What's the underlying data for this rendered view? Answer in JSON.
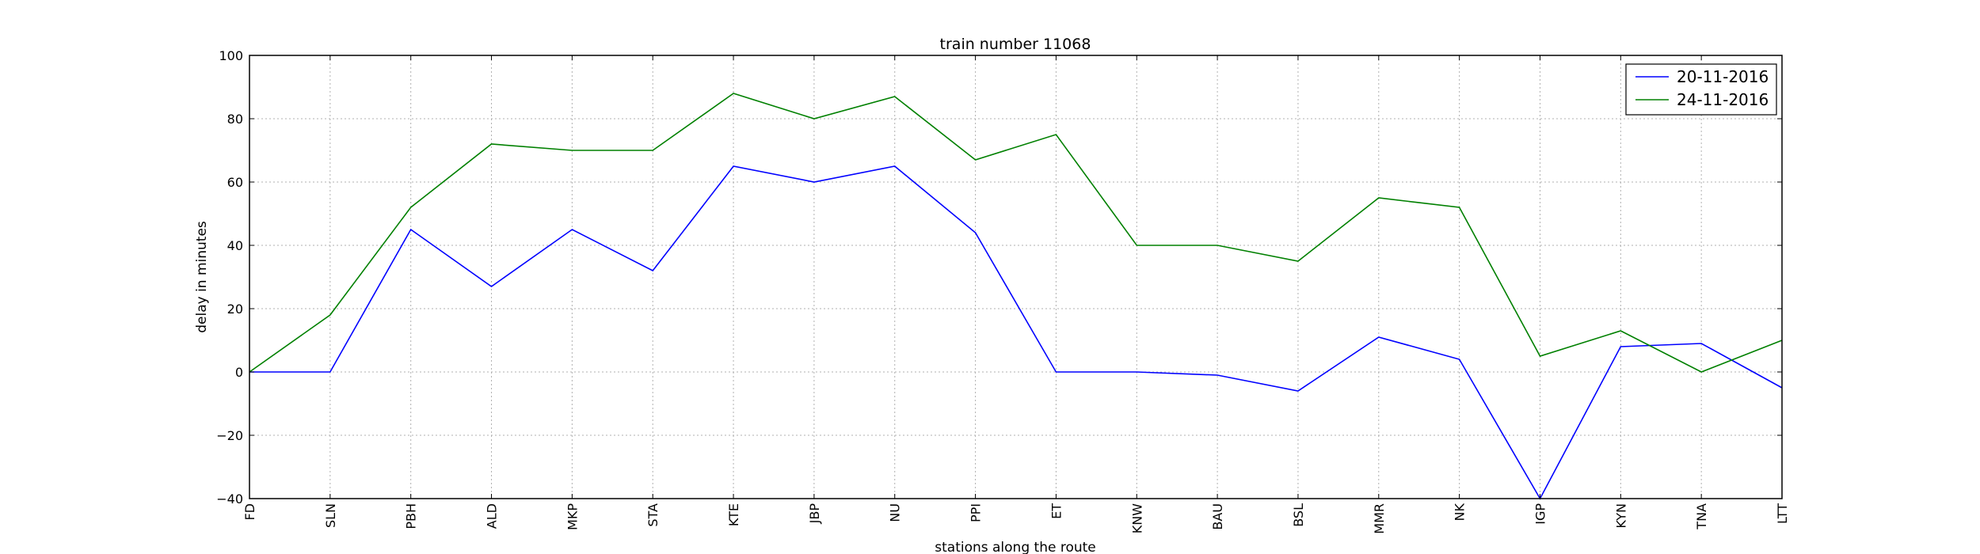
{
  "chart_data": {
    "type": "line",
    "title": "train number 11068",
    "xlabel": "stations along the route",
    "ylabel": "delay in minutes",
    "categories": [
      "FD",
      "SLN",
      "PBH",
      "ALD",
      "MKP",
      "STA",
      "KTE",
      "JBP",
      "NU",
      "PPI",
      "ET",
      "KNW",
      "BAU",
      "BSL",
      "MMR",
      "NK",
      "IGP",
      "KYN",
      "TNA",
      "LTT"
    ],
    "ylim": [
      -40,
      100
    ],
    "yticks": [
      -40,
      -20,
      0,
      20,
      40,
      60,
      80,
      100
    ],
    "ytick_labels": [
      "−40",
      "−20",
      "0",
      "20",
      "40",
      "60",
      "80",
      "100"
    ],
    "grid": true,
    "legend_position": "top-right",
    "series": [
      {
        "name": "20-11-2016",
        "color": "#0000ff",
        "values": [
          0,
          0,
          45,
          27,
          45,
          32,
          65,
          60,
          65,
          44,
          0,
          0,
          -1,
          -6,
          11,
          4,
          -40,
          8,
          9,
          -5
        ]
      },
      {
        "name": "24-11-2016",
        "color": "#008000",
        "values": [
          0,
          18,
          52,
          72,
          70,
          70,
          88,
          80,
          87,
          67,
          75,
          40,
          40,
          35,
          55,
          52,
          5,
          13,
          0,
          10
        ]
      }
    ]
  }
}
